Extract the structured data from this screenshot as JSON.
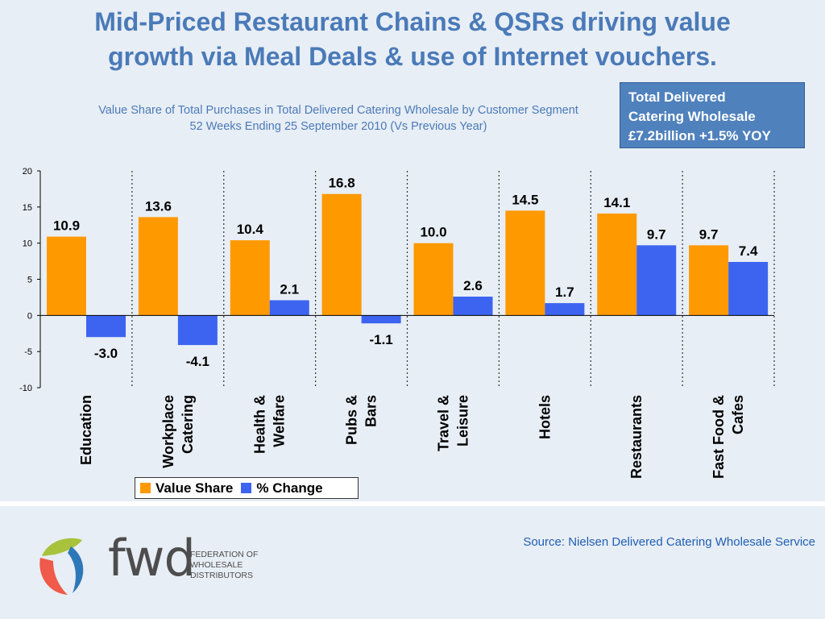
{
  "title_line1": "Mid-Priced Restaurant Chains & QSRs driving value",
  "title_line2": "growth via Meal Deals & use of Internet vouchers.",
  "subtitle_line1": "Value Share of Total Purchases in Total Delivered Catering Wholesale by Customer Segment",
  "subtitle_line2": "52 Weeks Ending 25 September 2010 (Vs Previous Year)",
  "total_box": {
    "line1": "Total Delivered",
    "line2": "Catering Wholesale",
    "line3": "£7.2billion +1.5% YOY"
  },
  "source": "Source: Nielsen Delivered Catering Wholesale Service",
  "logo": {
    "wordmark": "fwd",
    "line1": "FEDERATION OF",
    "line2": "WHOLESALE",
    "line3": "DISTRIBUTORS"
  },
  "colors": {
    "value_share": "#ff9900",
    "pct_change": "#3c64f0",
    "title": "#4a7ab8"
  },
  "chart_data": {
    "type": "bar",
    "categories": [
      [
        "Education"
      ],
      [
        "Workplace",
        "Catering"
      ],
      [
        "Health &",
        "Welfare"
      ],
      [
        "Pubs &",
        "Bars"
      ],
      [
        "Travel &",
        "Leisure"
      ],
      [
        "Hotels"
      ],
      [
        "Restaurants"
      ],
      [
        "Fast Food &",
        "Cafes"
      ]
    ],
    "series": [
      {
        "name": "Value Share",
        "values": [
          10.9,
          13.6,
          10.4,
          16.8,
          10.0,
          14.5,
          14.1,
          9.7
        ],
        "labels": [
          "10.9",
          "13.6",
          "10.4",
          "16.8",
          "10.0",
          "14.5",
          "14.1",
          "9.7"
        ]
      },
      {
        "name": "% Change",
        "values": [
          -3.0,
          -4.1,
          2.1,
          -1.1,
          2.6,
          1.7,
          9.7,
          7.4
        ],
        "labels": [
          "-3.0",
          "-4.1",
          "2.1",
          "-1.1",
          "2.6",
          "1.7",
          "9.7",
          "7.4"
        ]
      }
    ],
    "ylim": [
      -10,
      20
    ],
    "yticks": [
      "20",
      "15",
      "10",
      "5",
      "0",
      "-5",
      "-10"
    ],
    "legend": "bottom",
    "grid": false
  }
}
